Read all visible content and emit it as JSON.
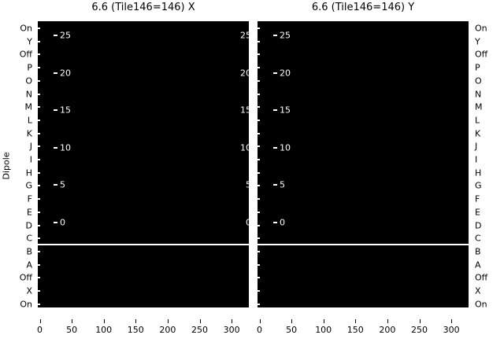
{
  "figure": {
    "background": "#ffffff",
    "panel_color": "#000000",
    "axis_text_color": "#000000",
    "inner_text_color": "#ffffff"
  },
  "titles": {
    "left": "6.6 (Tile146=146) X",
    "right": "6.6 (Tile146=146) Y"
  },
  "y_axis": {
    "label": "Dipole",
    "row_labels": [
      "On",
      "Y",
      "Off",
      "P",
      "O",
      "N",
      "M",
      "L",
      "K",
      "J",
      "I",
      "H",
      "G",
      "F",
      "E",
      "D",
      "C",
      "B",
      "A",
      "Off",
      "X",
      "On"
    ]
  },
  "inner_axis": {
    "tick_labels": [
      "25",
      "20",
      "15",
      "10",
      "5",
      "0"
    ]
  },
  "x_axis": {
    "tick_labels": [
      "0",
      "50",
      "100",
      "150",
      "200",
      "250",
      "300"
    ]
  },
  "chart_data": [
    {
      "type": "heatmap",
      "title": "6.6 (Tile146=146) X",
      "xlabel": "",
      "ylabel": "Dipole",
      "x_ticks": [
        0,
        50,
        100,
        150,
        200,
        250,
        300
      ],
      "y_categories": [
        "On",
        "Y",
        "Off",
        "P",
        "O",
        "N",
        "M",
        "L",
        "K",
        "J",
        "I",
        "H",
        "G",
        "F",
        "E",
        "D",
        "C",
        "B",
        "A",
        "Off",
        "X",
        "On"
      ],
      "inner_y_ticks": [
        25,
        20,
        15,
        10,
        5,
        0
      ],
      "values": "uniform minimum — entire image area rendered solid black",
      "divider": "white horizontal gap between rows C and B",
      "colormap_background": "#000000",
      "legend": "none",
      "grid": false
    },
    {
      "type": "heatmap",
      "title": "6.6 (Tile146=146) Y",
      "xlabel": "",
      "ylabel": "",
      "x_ticks": [
        0,
        50,
        100,
        150,
        200,
        250,
        300
      ],
      "y_categories": [
        "On",
        "Y",
        "Off",
        "P",
        "O",
        "N",
        "M",
        "L",
        "K",
        "J",
        "I",
        "H",
        "G",
        "F",
        "E",
        "D",
        "C",
        "B",
        "A",
        "Off",
        "X",
        "On"
      ],
      "inner_y_ticks": [
        25,
        20,
        15,
        10,
        5,
        0
      ],
      "values": "uniform minimum — entire image area rendered solid black",
      "divider": "white horizontal gap between rows C and B",
      "colormap_background": "#000000",
      "legend": "none",
      "grid": false
    }
  ]
}
